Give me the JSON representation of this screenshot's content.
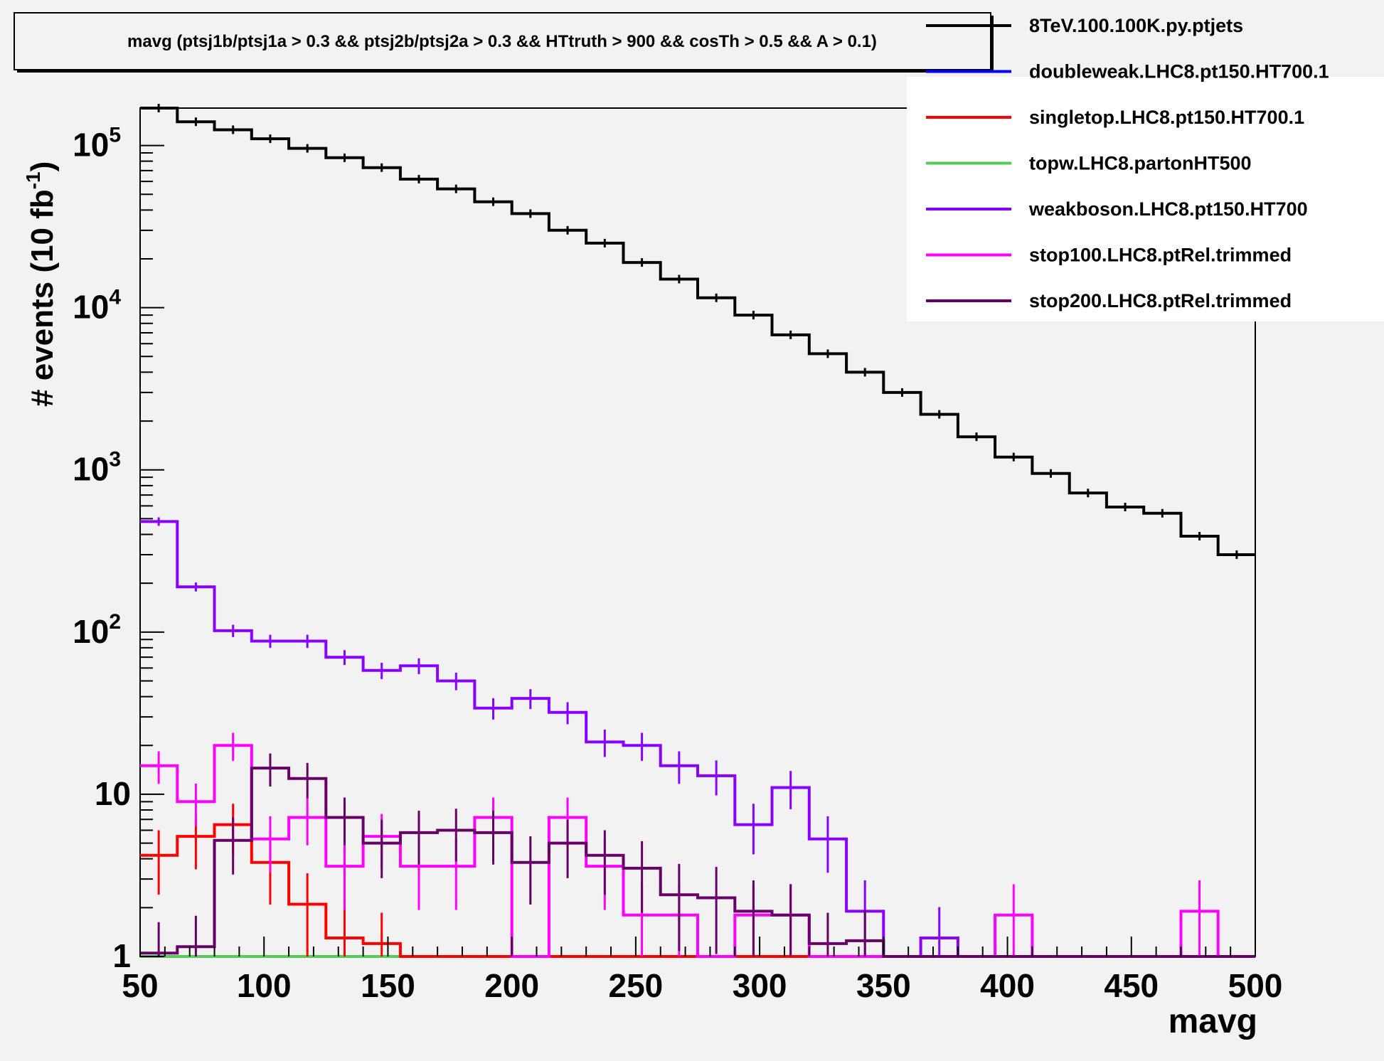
{
  "chart_data": {
    "type": "histogram",
    "title": "mavg (ptsj1b/ptsj1a > 0.3 && ptsj2b/ptsj2a > 0.3 && HTtruth > 900 && cosTh > 0.5 && A > 0.1)",
    "xlabel": "mavg",
    "ylabel": "# events (10 fb",
    "ylabel_sup": "-1",
    "ylabel_end": ")",
    "xlim": [
      50,
      500
    ],
    "ylim": [
      1,
      170000
    ],
    "yscale": "log",
    "x_ticks": [
      "50",
      "100",
      "150",
      "200",
      "250",
      "300",
      "350",
      "400",
      "450",
      "500"
    ],
    "y_ticks": [
      {
        "value": 1,
        "base": "1",
        "exp": ""
      },
      {
        "value": 10,
        "base": "10",
        "exp": ""
      },
      {
        "value": 100,
        "base": "10",
        "exp": "2"
      },
      {
        "value": 1000,
        "base": "10",
        "exp": "3"
      },
      {
        "value": 10000,
        "base": "10",
        "exp": "4"
      },
      {
        "value": 100000,
        "base": "10",
        "exp": "5"
      }
    ],
    "bin_edges": [
      50,
      65,
      80,
      95,
      110,
      125,
      140,
      155,
      170,
      185,
      200,
      215,
      230,
      245,
      260,
      275,
      290,
      305,
      320,
      335,
      350,
      365,
      380,
      395,
      410,
      425,
      440,
      455,
      470,
      485,
      500
    ],
    "legend_position": "top-right",
    "grid": false,
    "series": [
      {
        "name": "8TeV.100.100K.py.ptjets",
        "color": "#000000",
        "values": [
          170000,
          140000,
          125000,
          110000,
          96000,
          84000,
          73000,
          62000,
          54000,
          45000,
          38000,
          30000,
          25000,
          19000,
          15000,
          11500,
          9000,
          6800,
          5200,
          4000,
          3000,
          2200,
          1600,
          1200,
          950,
          720,
          590,
          540,
          390,
          300
        ],
        "errors": true
      },
      {
        "name": "doubleweak.LHC8.pt150.HT700.1",
        "color": "#0000ff",
        "values": [
          1,
          1,
          1,
          1,
          1,
          1,
          1,
          1,
          1,
          1,
          1,
          1,
          1,
          1,
          1,
          1,
          1,
          1,
          1,
          1,
          1,
          1,
          1,
          1,
          1,
          1,
          1,
          1,
          1,
          1
        ],
        "errors": false
      },
      {
        "name": "singletop.LHC8.pt150.HT700.1",
        "color": "#ff0000",
        "values": [
          4.2,
          5.5,
          6.5,
          3.8,
          2.1,
          1.3,
          1.2,
          1,
          1,
          1,
          1,
          1,
          1,
          1,
          1,
          1,
          1,
          1,
          1,
          1,
          1,
          1,
          1,
          1,
          1,
          1,
          1,
          1,
          1,
          1
        ],
        "errors": true
      },
      {
        "name": "topw.LHC8.partonHT500",
        "color": "#55cc55",
        "values": [
          1,
          1,
          1,
          1,
          1,
          1,
          1,
          1,
          1,
          1,
          1,
          1,
          1,
          1,
          1,
          1,
          1,
          1,
          1,
          1,
          1,
          1,
          1,
          1,
          1,
          1,
          1,
          1,
          1,
          1
        ],
        "errors": false
      },
      {
        "name": "weakboson.LHC8.pt150.HT700",
        "color": "#8800ff",
        "values": [
          480,
          190,
          102,
          88,
          88,
          70,
          58,
          62,
          50,
          34,
          39,
          32,
          21,
          20,
          15,
          13,
          6.5,
          11,
          5.3,
          1.9,
          1,
          1.3,
          1,
          1,
          1,
          1,
          1,
          1,
          1,
          1
        ],
        "errors": true
      },
      {
        "name": "stop100.LHC8.ptRel.trimmed",
        "color": "#ff00ff",
        "values": [
          15,
          9,
          20,
          5.3,
          7.2,
          3.6,
          5.5,
          3.6,
          3.6,
          7.2,
          1,
          7.2,
          3.6,
          1.8,
          1.8,
          1,
          1.8,
          1.8,
          1,
          1,
          1,
          1,
          1,
          1.8,
          1,
          1,
          1,
          1,
          1.9,
          1
        ],
        "errors": true
      },
      {
        "name": "stop200.LHC8.ptRel.trimmed",
        "color": "#660066",
        "values": [
          1.05,
          1.15,
          5.2,
          14.5,
          12.5,
          7.2,
          5,
          5.8,
          6,
          5.8,
          3.8,
          5,
          4.2,
          3.5,
          2.4,
          2.3,
          1.9,
          1.8,
          1.2,
          1.25,
          1,
          1,
          1,
          1,
          1,
          1,
          1,
          1,
          1,
          1
        ],
        "errors": true
      }
    ]
  }
}
